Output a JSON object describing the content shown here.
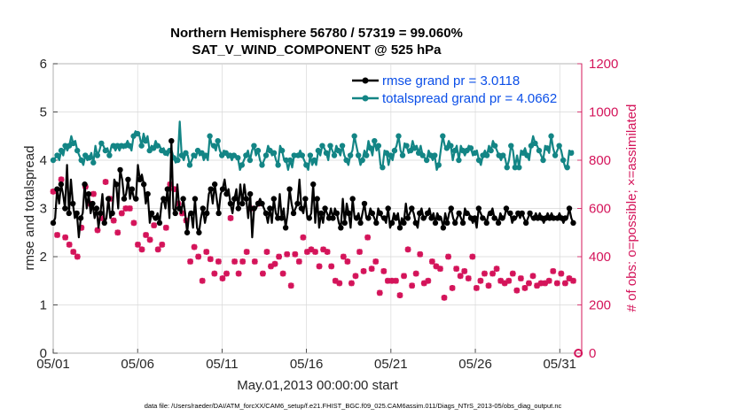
{
  "chart_data": {
    "type": "line",
    "title_line1": "Northern Hemisphere 56780 / 57319 = 99.060%",
    "title_line2": "SAT_V_WIND_COMPONENT @ 525 hPa",
    "xlabel": "May.01,2013 00:00:00 start",
    "ylabel_left": "rmse and totalspread",
    "ylabel_right": "# of obs: o=possible; ×=assimilated",
    "footnote": "data file: /Users/raeder/DAI/ATM_forcXX/CAM6_setup/f.e21.FHIST_BGC.f09_025.CAM6assim.011/Diags_NTrS_2013-05/obs_diag_output.nc",
    "xlim": [
      1,
      32.3
    ],
    "ylim_left": [
      0,
      6
    ],
    "ylim_right": [
      0,
      1200
    ],
    "x_ticks": [
      1,
      6,
      11,
      16,
      21,
      26,
      31
    ],
    "x_tick_labels": [
      "05/01",
      "05/06",
      "05/11",
      "05/16",
      "05/21",
      "05/26",
      "05/31"
    ],
    "y_ticks_left": [
      0,
      1,
      2,
      3,
      4,
      5,
      6
    ],
    "y_ticks_right": [
      0,
      200,
      400,
      600,
      800,
      1000,
      1200
    ],
    "colors": {
      "rmse": "#000000",
      "spread": "#138585",
      "obs": "#d4145a",
      "legend_text": "#0b4fe8"
    },
    "series": [
      {
        "name": "rmse grand pr = 3.0118",
        "axis": "left",
        "values": [
          2.7,
          2.8,
          3.4,
          3.1,
          3.5,
          3.3,
          3.0,
          3.9,
          2.9,
          3.6,
          3.1,
          2.8,
          2.9,
          2.4,
          2.8,
          2.9,
          3.5,
          3.0,
          3.3,
          2.9,
          3.1,
          2.8,
          3.0,
          2.6,
          2.9,
          3.3,
          2.7,
          2.8,
          3.2,
          2.8,
          2.9,
          3.6,
          3.5,
          3.0,
          3.8,
          3.6,
          3.2,
          3.3,
          3.6,
          3.2,
          3.4,
          3.2,
          3.2,
          3.9,
          3.6,
          3.7,
          3.5,
          3.1,
          3.3,
          2.7,
          2.9,
          2.8,
          2.8,
          2.9,
          2.7,
          3.1,
          3.2,
          3.0,
          3.4,
          2.8,
          4.4,
          3.0,
          2.9,
          3.5,
          3.0,
          2.9,
          3.2,
          2.9,
          2.5,
          2.9,
          2.9,
          2.6,
          3.2,
          2.6,
          2.5,
          2.8,
          3.0,
          2.7,
          2.9,
          3.3,
          3.4,
          3.1,
          3.5,
          3.2,
          2.9,
          3.3,
          3.4,
          3.6,
          3.3,
          3.4,
          3.1,
          2.9,
          3.2,
          3.4,
          3.0,
          3.5,
          3.1,
          3.5,
          3.2,
          2.8,
          3.3,
          2.4,
          3.0,
          3.0,
          3.1,
          3.2,
          3.1,
          3.0,
          2.9,
          2.7,
          3.0,
          2.7,
          3.2,
          2.9,
          2.8,
          3.3,
          2.8,
          3.0,
          2.6,
          2.9,
          3.4,
          3.1,
          2.9,
          3.0,
          3.1,
          3.6,
          3.0,
          2.9,
          3.2,
          2.8,
          2.8,
          2.9,
          3.5,
          2.7,
          3.2,
          2.6,
          2.9,
          2.7,
          3.0,
          2.9,
          2.8,
          3.0,
          2.8,
          3.0,
          2.9,
          2.7,
          2.6,
          3.2,
          2.7,
          3.1,
          2.9,
          2.6,
          3.2,
          2.8,
          2.8,
          2.9,
          2.7,
          2.9,
          3.1,
          2.8,
          2.8,
          3.0,
          2.9,
          2.8,
          2.7,
          3.0,
          2.9,
          2.8,
          2.8,
          2.7,
          3.0,
          2.6,
          2.7,
          2.9,
          2.8,
          2.9,
          2.6,
          2.8,
          2.7,
          3.1,
          2.8,
          2.9,
          3.0,
          2.9,
          2.7,
          2.6,
          2.9,
          3.0,
          2.8,
          2.8,
          2.9,
          3.0,
          2.8,
          2.9,
          2.7,
          2.9,
          2.8,
          2.8,
          2.6,
          2.9,
          2.7,
          2.9,
          3.0,
          2.8,
          2.7,
          2.8,
          2.9,
          2.8,
          2.7,
          3.0,
          2.9,
          2.9,
          2.8,
          2.7,
          2.8,
          2.6,
          3.0,
          2.9,
          2.8,
          2.8,
          2.7,
          2.9,
          2.9,
          3.0,
          2.8,
          2.8,
          2.7,
          2.9,
          2.8,
          2.8,
          3.0,
          2.9,
          2.9,
          2.7,
          2.8,
          2.8,
          2.9,
          2.8,
          2.9,
          2.8,
          2.7,
          2.8,
          2.9,
          2.8,
          2.8,
          2.9,
          2.8,
          2.9,
          2.8,
          2.7,
          2.8,
          2.9,
          2.8,
          2.9,
          2.8,
          2.8,
          2.8,
          2.9,
          2.8,
          2.7,
          2.8,
          2.8,
          3.0,
          2.8,
          2.7
        ]
      },
      {
        "name": "totalspread grand pr = 4.0662",
        "axis": "left",
        "values": [
          4.0,
          4.05,
          4.1,
          4.0,
          4.2,
          4.1,
          4.3,
          4.2,
          4.3,
          4.5,
          4.35,
          4.4,
          4.2,
          4.1,
          4.0,
          3.9,
          4.1,
          4.0,
          4.05,
          4.15,
          3.95,
          4.3,
          4.1,
          4.2,
          4.35,
          4.3,
          4.2,
          4.25,
          4.1,
          4.3,
          4.3,
          4.2,
          4.3,
          4.2,
          4.3,
          4.25,
          4.3,
          4.4,
          4.3,
          4.2,
          4.5,
          4.6,
          4.55,
          4.5,
          4.3,
          4.55,
          4.4,
          4.5,
          4.2,
          4.3,
          4.25,
          4.4,
          4.3,
          4.3,
          4.2,
          4.25,
          4.15,
          4.1,
          4.2,
          4.2,
          4.05,
          3.95,
          4.0,
          4.8,
          4.1,
          4.0,
          4.15,
          4.1,
          3.9,
          4.0,
          4.1,
          4.05,
          4.2,
          4.1,
          4.15,
          4.0,
          4.1,
          4.0,
          4.5,
          4.3,
          4.3,
          4.2,
          4.4,
          4.2,
          4.1,
          4.2,
          4.15,
          4.05,
          4.1,
          4.0,
          4.1,
          4.1,
          4.05,
          3.8,
          3.9,
          4.0,
          4.1,
          4.2,
          4.0,
          4.2,
          4.3,
          4.1,
          4.2,
          4.0,
          3.9,
          4.0,
          4.1,
          4.3,
          4.2,
          4.1,
          4.15,
          4.0,
          3.9,
          4.3,
          4.2,
          4.0,
          4.0,
          3.8,
          4.0,
          3.85,
          4.1,
          4.1,
          4.1,
          4.2,
          4.1,
          4.0,
          3.9,
          3.8,
          4.1,
          3.9,
          4.0,
          3.9,
          4.2,
          4.1,
          4.3,
          4.25,
          4.15,
          4.0,
          4.3,
          4.2,
          4.1,
          4.3,
          4.2,
          4.1,
          4.3,
          4.1,
          4.0,
          3.9,
          4.1,
          4.2,
          4.5,
          4.3,
          4.1,
          3.9,
          4.0,
          4.2,
          4.1,
          4.4,
          4.25,
          4.1,
          4.4,
          4.2,
          4.3,
          3.9,
          3.85,
          4.2,
          4.15,
          3.9,
          4.1,
          4.0,
          4.2,
          4.3,
          4.5,
          4.2,
          4.1,
          4.35,
          4.3,
          4.15,
          4.2,
          4.4,
          4.25,
          4.3,
          4.15,
          4.3,
          4.1,
          4.05,
          4.0,
          4.2,
          4.1,
          4.0,
          4.1,
          3.8,
          3.9,
          4.2,
          4.5,
          4.3,
          4.25,
          4.4,
          4.3,
          4.0,
          4.2,
          4.3,
          4.0,
          4.3,
          4.2,
          4.1,
          4.2,
          4.3,
          4.25,
          4.1,
          4.15,
          4.2,
          4.0,
          3.9,
          4.1,
          4.2,
          4.1,
          4.3,
          4.2,
          4.4,
          4.3,
          4.2,
          4.1,
          4.0,
          4.1,
          4.05,
          3.85,
          4.0,
          4.3,
          4.2,
          3.85,
          4.1,
          3.85,
          4.2,
          4.15,
          4.25,
          4.1,
          4.0,
          4.3,
          4.5,
          4.35,
          4.3,
          4.2,
          4.1,
          4.0,
          4.3,
          4.25,
          4.15,
          4.5,
          4.25,
          4.1,
          4.2,
          4.3,
          4.2,
          4.0,
          3.85,
          3.85,
          4.2,
          4.15,
          4.2
        ]
      },
      {
        "name": "# of obs (assimilated)",
        "axis": "right",
        "values": [
          670,
          640,
          490,
          650,
          720,
          620,
          480,
          630,
          450,
          560,
          420,
          460,
          400,
          450,
          520,
          540,
          690,
          560,
          620,
          720,
          660,
          530,
          510,
          470,
          560,
          620,
          710,
          690,
          640,
          500,
          550,
          630,
          500,
          630,
          580,
          520,
          600,
          480,
          600,
          620,
          540,
          600,
          450,
          460,
          430,
          480,
          490,
          600,
          470,
          360,
          530,
          480,
          430,
          480,
          450,
          400,
          520,
          600,
          700,
          580,
          680,
          660,
          620,
          610,
          580,
          500,
          550,
          600,
          380,
          420,
          440,
          370,
          400,
          390,
          300,
          430,
          420,
          380,
          390,
          360,
          330,
          350,
          380,
          340,
          310,
          230,
          330,
          440,
          560,
          300,
          380,
          420,
          330,
          340,
          380,
          350,
          420,
          610,
          600,
          640,
          380,
          420,
          620,
          380,
          330,
          350,
          420,
          380,
          360,
          380,
          370,
          440,
          400,
          390,
          330,
          300,
          410,
          330,
          280,
          290,
          410,
          330,
          380,
          310,
          480,
          350,
          420,
          440,
          430,
          300,
          420,
          330,
          360,
          390,
          430,
          340,
          420,
          350,
          360,
          410,
          300,
          340,
          290,
          420,
          400,
          310,
          380,
          320,
          290,
          330,
          320,
          320,
          420,
          390,
          340,
          310,
          480,
          430,
          350,
          310,
          380,
          330,
          250,
          380,
          340,
          410,
          300,
          290,
          300,
          390,
          300,
          200,
          240,
          300,
          320,
          340,
          430,
          350,
          280,
          290,
          330,
          300,
          410,
          330,
          290,
          290,
          300,
          260,
          380,
          320,
          360,
          420,
          350,
          300,
          230,
          340,
          400,
          330,
          270,
          310,
          350,
          280,
          320,
          380,
          340,
          290,
          310,
          380,
          400,
          350,
          270,
          340,
          300,
          310,
          330,
          320,
          280,
          250,
          330,
          300,
          350,
          280,
          300,
          260,
          290,
          310,
          300,
          290,
          330,
          340,
          260,
          300,
          310,
          280,
          270,
          300,
          290,
          340,
          320,
          300,
          280,
          300,
          290,
          310,
          290,
          280,
          300,
          330,
          340,
          310,
          290,
          320,
          330,
          280,
          290,
          300,
          310,
          320,
          300
        ]
      }
    ],
    "obs_last_point": {
      "x": 32.1,
      "value": 0
    }
  }
}
